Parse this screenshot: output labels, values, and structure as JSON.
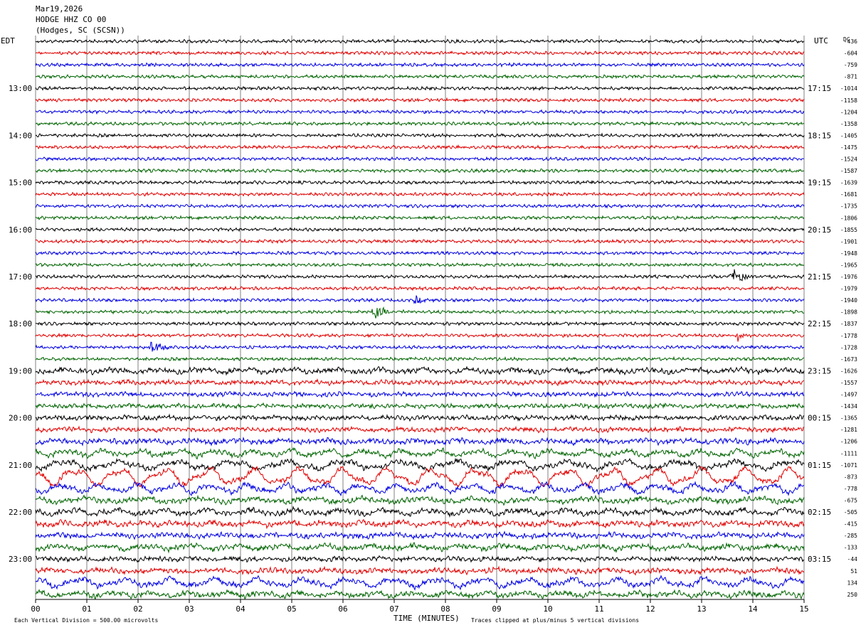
{
  "header": {
    "date": "Mar19,2026",
    "station": "HODGE HHZ CO 00",
    "location": "(Hodges, SC (SCSN))"
  },
  "labels": {
    "left_tz": "EDT",
    "right_tz": "UTC",
    "dc_label": "DC"
  },
  "footer": {
    "scale_note": "Each Vertical Division =  500.00 microvolts",
    "x_axis_label": "TIME (MINUTES)",
    "clip_note": "Traces clipped at plus/minus 5 vertical divisions"
  },
  "colors": {
    "trace_cycle": [
      "#000000",
      "#e00000",
      "#0000e0",
      "#006400"
    ],
    "grid": "#808080",
    "background": "#ffffff"
  },
  "chart_data": {
    "type": "line",
    "subtype": "helicorder",
    "title": "Mar19,2026 HODGE HHZ CO 00 (Hodges, SC (SCSN))",
    "xlabel": "TIME (MINUTES)",
    "x_ticks": [
      "00",
      "01",
      "02",
      "03",
      "04",
      "05",
      "06",
      "07",
      "08",
      "09",
      "10",
      "11",
      "12",
      "13",
      "14",
      "15"
    ],
    "xlim": [
      0,
      15
    ],
    "left_time_labels": [
      "13:00",
      "14:00",
      "15:00",
      "16:00",
      "17:00",
      "18:00",
      "19:00",
      "20:00",
      "21:00",
      "22:00",
      "23:00"
    ],
    "right_time_labels": [
      "17:15",
      "18:15",
      "19:15",
      "20:15",
      "21:15",
      "22:15",
      "23:15",
      "00:15",
      "01:15",
      "02:15",
      "03:15"
    ],
    "time_label_first_row": 4,
    "time_label_row_step": 4,
    "dc_offsets": [
      "-436",
      "-604",
      "-759",
      "-871",
      "-1014",
      "-1158",
      "-1204",
      "-1358",
      "-1405",
      "-1475",
      "-1524",
      "-1587",
      "-1639",
      "-1681",
      "-1735",
      "-1806",
      "-1855",
      "-1901",
      "-1948",
      "-1965",
      "-1976",
      "-1979",
      "-1940",
      "-1898",
      "-1837",
      "-1778",
      "-1728",
      "-1673",
      "-1626",
      "-1557",
      "-1497",
      "-1434",
      "-1365",
      "-1281",
      "-1206",
      "-1111",
      "-1071",
      "-873",
      "-778",
      "-675",
      "-505",
      "-415",
      "-285",
      "-133",
      "-44",
      "51",
      "134",
      "250"
    ],
    "trace_count": 48,
    "minutes_per_trace": 15,
    "noise_level": [
      1,
      1,
      1,
      1,
      1,
      1,
      1,
      1,
      1,
      1,
      1,
      1,
      1,
      1,
      1,
      1,
      1,
      1,
      1,
      1,
      1,
      1,
      1,
      1,
      1,
      1,
      1,
      1,
      1.8,
      1.4,
      1.3,
      1.3,
      1.4,
      1.4,
      1.6,
      2.4,
      3,
      5,
      3,
      2,
      2.2,
      1.8,
      1.6,
      2,
      1.4,
      1.6,
      3,
      2
    ],
    "events": [
      {
        "trace": 22,
        "minute": 7.4,
        "amplitude": 0.6
      },
      {
        "trace": 23,
        "minute": 6.6,
        "amplitude": 1.3
      },
      {
        "trace": 20,
        "minute": 13.6,
        "amplitude": 1.4
      },
      {
        "trace": 25,
        "minute": 13.7,
        "amplitude": 0.9
      },
      {
        "trace": 26,
        "minute": 2.25,
        "amplitude": 1.0
      }
    ]
  }
}
